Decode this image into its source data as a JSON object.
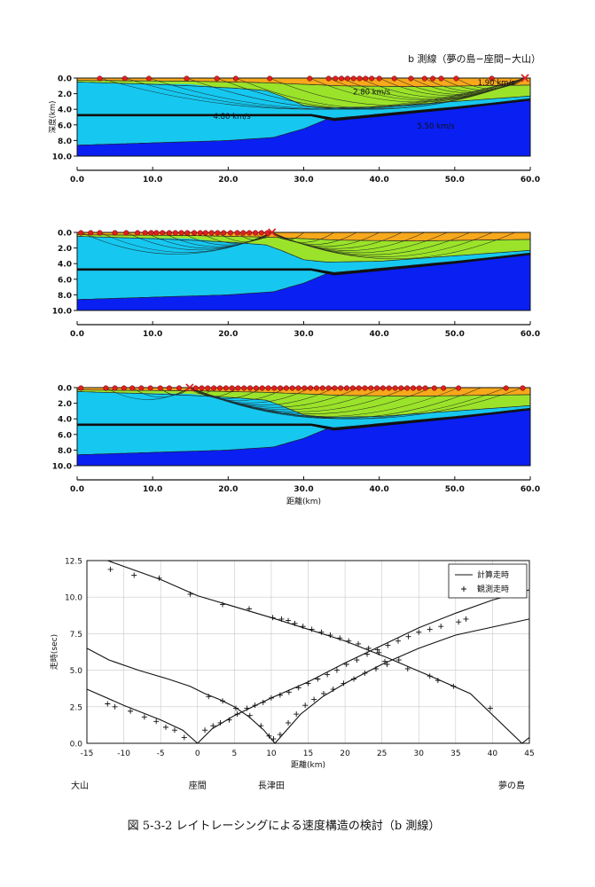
{
  "page": {
    "caption": "図 5-3-2 レイトレーシングによる速度構造の検討（b 測線）"
  },
  "colors": {
    "sediment_top": "#f7a81b",
    "layer_2_80": "#9be32a",
    "layer_4_80": "#16c8f0",
    "layer_5_50": "#0a1ff2",
    "ray": "#1a1a1a",
    "station": "#e02020",
    "shot": "#e02020"
  },
  "chart_data": [
    {
      "type": "area",
      "id": "section-1",
      "title": "b 測線（夢の島−座間−大山）",
      "ylabel": "深度(km)",
      "xlabel": "",
      "xlim": [
        0,
        60
      ],
      "ylim": [
        10,
        0
      ],
      "xticks": [
        "0.0",
        "10.0",
        "20.0",
        "30.0",
        "40.0",
        "50.0",
        "60.0"
      ],
      "yticks": [
        "0.0",
        "2.0",
        "4.0",
        "6.0",
        "8.0",
        "10.0"
      ],
      "velocity_labels": [
        {
          "text": "4.80 km/s",
          "x": 20.5,
          "depth": 5.2
        },
        {
          "text": "2.80 km/s",
          "x": 39.0,
          "depth": 2.1
        },
        {
          "text": "1.90 km/s",
          "x": 55.5,
          "depth": 0.9
        },
        {
          "text": "5.50 km/s",
          "x": 47.5,
          "depth": 6.5
        }
      ],
      "shot_x": 59.3,
      "stations": [
        3.0,
        6.3,
        9.5,
        14.5,
        18.5,
        21.0,
        25.5,
        30.8,
        33.3,
        34.2,
        35.0,
        35.8,
        36.6,
        37.4,
        38.2,
        39.0,
        40.0,
        42.0,
        44.2,
        46.0,
        47.1,
        48.2,
        50.2,
        54.9
      ],
      "ray_source": 59.3,
      "ray_targets": [
        3.0,
        6.3,
        9.5,
        14.5,
        18.5,
        21.0,
        25.5,
        30.8,
        33.3,
        35.0,
        37.4,
        40.0,
        42.0,
        44.2,
        46.0,
        48.2,
        50.2,
        54.9
      ]
    },
    {
      "type": "area",
      "id": "section-2",
      "title": "",
      "ylabel": "",
      "xlabel": "",
      "xlim": [
        0,
        60
      ],
      "ylim": [
        10,
        0
      ],
      "xticks": [
        "0.0",
        "10.0",
        "20.0",
        "30.0",
        "40.0",
        "50.0",
        "60.0"
      ],
      "yticks": [
        "0.0",
        "2.0",
        "4.0",
        "6.0",
        "8.0",
        "10.0"
      ],
      "shot_x": 25.8,
      "stations": [
        0.5,
        1.8,
        3.0,
        5.0,
        6.5,
        8.0,
        9.0,
        9.8,
        10.5,
        11.3,
        12.2,
        13.0,
        13.8,
        14.6,
        15.5,
        16.3,
        17.0,
        17.8,
        18.6,
        19.4,
        20.3,
        21.2,
        22.0,
        22.8,
        23.6,
        24.4,
        25.2
      ],
      "ray_source": 25.8,
      "ray_targets": [
        0.5,
        3.0,
        6.5,
        9.0,
        11.3,
        13.8,
        16.3,
        18.6,
        21.2,
        23.6,
        30.0,
        34.0,
        37.0,
        40.0,
        43.0,
        46.0,
        49.0,
        52.0,
        55.0,
        58.0
      ]
    },
    {
      "type": "area",
      "id": "section-3",
      "title": "",
      "ylabel": "",
      "xlabel": "距離(km)",
      "xlim": [
        0,
        60
      ],
      "ylim": [
        10,
        0
      ],
      "xticks": [
        "0.0",
        "10.0",
        "20.0",
        "30.0",
        "40.0",
        "50.0",
        "60.0"
      ],
      "yticks": [
        "0.0",
        "2.0",
        "4.0",
        "6.0",
        "8.0",
        "10.0"
      ],
      "shot_x": 14.9,
      "stations": [
        0.5,
        3.8,
        5.0,
        6.2,
        7.3,
        8.5,
        9.7,
        11.0,
        12.2,
        13.5,
        15.7,
        16.5,
        17.3,
        18.1,
        18.9,
        19.7,
        20.5,
        21.3,
        22.1,
        22.9,
        23.7,
        24.5,
        25.3,
        26.1,
        26.9,
        27.7,
        28.5,
        29.3,
        30.1,
        30.9,
        31.7,
        32.5,
        33.3,
        34.1,
        34.9,
        35.7,
        36.5,
        37.3,
        38.1,
        38.9,
        39.7,
        40.5,
        41.3,
        42.1,
        42.9,
        43.7,
        44.5,
        45.3,
        46.1,
        47.3,
        48.5,
        50.5,
        56.8,
        59.0
      ],
      "ray_source": 14.9,
      "ray_targets": [
        3.8,
        7.3,
        11.0,
        18.1,
        21.3,
        24.5,
        27.7,
        30.9,
        34.1,
        37.3,
        40.5,
        43.7,
        46.9,
        50.5,
        53.5,
        56.8,
        59.0
      ]
    },
    {
      "type": "scatter",
      "id": "travel-time",
      "title": "",
      "xlabel": "距離(km)",
      "ylabel": "走時(sec)",
      "xlim": [
        -15,
        45
      ],
      "ylim": [
        0,
        12.5
      ],
      "xticks": [
        "-15",
        "-10",
        "-5",
        "0",
        "5",
        "10",
        "15",
        "20",
        "25",
        "30",
        "35",
        "40",
        "45"
      ],
      "yticks": [
        "0.0",
        "2.5",
        "5.0",
        "7.5",
        "10.0",
        "12.5"
      ],
      "grid": true,
      "legend_position": "top-right",
      "legend": [
        {
          "label": "計算走時",
          "marker": "line"
        },
        {
          "label": "観測走時",
          "marker": "plus"
        }
      ],
      "calculated_curves": [
        {
          "points": [
            [
              -12.2,
              12.5
            ],
            [
              -5,
              11.2
            ],
            [
              0,
              10.1
            ],
            [
              10,
              8.6
            ],
            [
              20,
              7.0
            ],
            [
              26,
              5.8
            ],
            [
              32,
              4.5
            ],
            [
              37,
              3.4
            ],
            [
              44,
              0.0
            ],
            [
              45,
              0.4
            ]
          ]
        },
        {
          "points": [
            [
              -15,
              6.5
            ],
            [
              -12,
              5.7
            ],
            [
              -8,
              5.0
            ],
            [
              -4,
              4.4
            ],
            [
              -1,
              3.9
            ],
            [
              1,
              3.4
            ],
            [
              3,
              3.0
            ],
            [
              5,
              2.5
            ],
            [
              7,
              1.8
            ],
            [
              9,
              0.9
            ],
            [
              10.5,
              0.0
            ],
            [
              14,
              2.0
            ],
            [
              17,
              3.2
            ],
            [
              20,
              4.1
            ],
            [
              25,
              5.4
            ],
            [
              30,
              6.5
            ],
            [
              35,
              7.4
            ],
            [
              45,
              8.5
            ]
          ]
        },
        {
          "points": [
            [
              -15,
              3.7
            ],
            [
              -10,
              2.6
            ],
            [
              -5,
              1.6
            ],
            [
              -2,
              0.9
            ],
            [
              0,
              0.0
            ],
            [
              2,
              1.0
            ],
            [
              5,
              1.9
            ],
            [
              10,
              3.1
            ],
            [
              15,
              4.2
            ],
            [
              20,
              5.5
            ],
            [
              25,
              6.7
            ],
            [
              30,
              7.9
            ],
            [
              35,
              8.9
            ],
            [
              40,
              9.8
            ],
            [
              45,
              10.5
            ]
          ]
        }
      ],
      "observed_points": [
        [
          -11.8,
          11.9
        ],
        [
          -8.6,
          11.5
        ],
        [
          -5.2,
          11.3
        ],
        [
          -1,
          10.2
        ],
        [
          3.4,
          9.5
        ],
        [
          7,
          9.2
        ],
        [
          10.2,
          8.6
        ],
        [
          11.4,
          8.5
        ],
        [
          12.3,
          8.4
        ],
        [
          13.2,
          8.2
        ],
        [
          14.3,
          8.0
        ],
        [
          15.5,
          7.8
        ],
        [
          16.8,
          7.6
        ],
        [
          18,
          7.4
        ],
        [
          19.3,
          7.2
        ],
        [
          20.5,
          7.0
        ],
        [
          21.8,
          6.8
        ],
        [
          23.2,
          6.5
        ],
        [
          24.6,
          6.2
        ],
        [
          25.4,
          5.6
        ],
        [
          28.5,
          5.1
        ],
        [
          31.5,
          4.6
        ],
        [
          32.6,
          4.3
        ],
        [
          34.7,
          3.9
        ],
        [
          39.7,
          2.4
        ],
        [
          -12.2,
          2.7
        ],
        [
          -11.2,
          2.5
        ],
        [
          -9.1,
          2.2
        ],
        [
          -7.2,
          1.8
        ],
        [
          -5.6,
          1.5
        ],
        [
          -4.3,
          1.1
        ],
        [
          -3.1,
          0.9
        ],
        [
          -1.8,
          0.4
        ],
        [
          1.0,
          0.9
        ],
        [
          2.1,
          1.2
        ],
        [
          3.1,
          1.4
        ],
        [
          4.3,
          1.6
        ],
        [
          5.4,
          2.0
        ],
        [
          6.7,
          2.4
        ],
        [
          7.8,
          2.6
        ],
        [
          8.9,
          2.8
        ],
        [
          10.0,
          3.1
        ],
        [
          11.2,
          3.3
        ],
        [
          12.4,
          3.5
        ],
        [
          13.7,
          3.8
        ],
        [
          15.0,
          4.1
        ],
        [
          16.3,
          4.4
        ],
        [
          17.6,
          4.7
        ],
        [
          18.9,
          5.0
        ],
        [
          20.2,
          5.4
        ],
        [
          21.6,
          5.7
        ],
        [
          23.0,
          6.1
        ],
        [
          24.4,
          6.4
        ],
        [
          25.8,
          6.7
        ],
        [
          27.2,
          7.0
        ],
        [
          28.6,
          7.3
        ],
        [
          30.0,
          7.6
        ],
        [
          31.5,
          7.8
        ],
        [
          33.0,
          8.0
        ],
        [
          35.4,
          8.3
        ],
        [
          36.4,
          8.5
        ],
        [
          1.5,
          3.2
        ],
        [
          3.4,
          2.9
        ],
        [
          5.2,
          2.4
        ],
        [
          7.1,
          1.9
        ],
        [
          8.6,
          1.2
        ],
        [
          9.7,
          0.5
        ],
        [
          10.3,
          0.3
        ],
        [
          11.2,
          0.6
        ],
        [
          12.3,
          1.4
        ],
        [
          13.4,
          2.0
        ],
        [
          14.6,
          2.6
        ],
        [
          15.8,
          3.0
        ],
        [
          17.1,
          3.4
        ],
        [
          18.4,
          3.7
        ],
        [
          19.8,
          4.1
        ],
        [
          21.2,
          4.4
        ],
        [
          22.7,
          4.8
        ],
        [
          24.2,
          5.1
        ],
        [
          25.7,
          5.4
        ],
        [
          27.3,
          5.7
        ]
      ],
      "location_labels": [
        {
          "text": "大山",
          "x": -15
        },
        {
          "text": "座間",
          "x": 0
        },
        {
          "text": "長津田",
          "x": 10
        },
        {
          "text": "夢の島",
          "x": 43
        }
      ]
    }
  ]
}
